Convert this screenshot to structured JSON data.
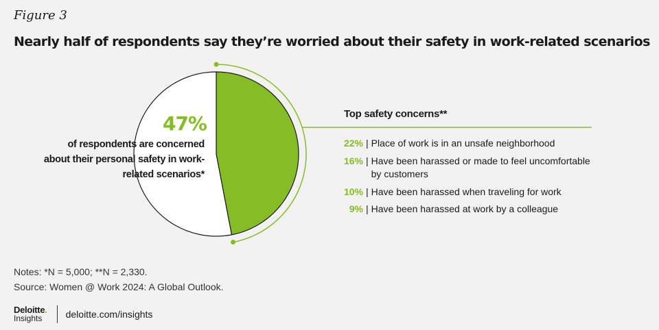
{
  "figure_label": "Figure 3",
  "title": "Nearly half of respondents say they’re worried about their safety in work-related scenarios",
  "chart_data": {
    "type": "pie",
    "slices": [
      {
        "label": "47%",
        "value": 47,
        "color": "#86bc25"
      },
      {
        "label": "",
        "value": 53,
        "color": "#ffffff"
      }
    ],
    "highlight_value": "47%",
    "highlight_description": "of respondents are concerned about their personal safety in work-related scenarios*",
    "breakdown_title": "Top safety concerns**",
    "breakdown": [
      {
        "pct": "22%",
        "value": 22,
        "text": "Place of work is in an unsafe neighborhood"
      },
      {
        "pct": "16%",
        "value": 16,
        "text": "Have been harassed or made to feel uncomfortable by customers"
      },
      {
        "pct": "10%",
        "value": 10,
        "text": "Have been harassed when traveling for work"
      },
      {
        "pct": "9%",
        "value": 9,
        "text": "Have been harassed at work by a colleague"
      }
    ]
  },
  "colors": {
    "accent": "#86bc25",
    "background": "#f2f2f2"
  },
  "notes": "Notes: *N = 5,000; **N = 2,330.",
  "source": "Source: Women @ Work 2024: A Global Outlook.",
  "footer": {
    "logo_line1": "Deloitte",
    "logo_dot": ".",
    "logo_line2": "Insights",
    "link": "deloitte.com/insights"
  }
}
